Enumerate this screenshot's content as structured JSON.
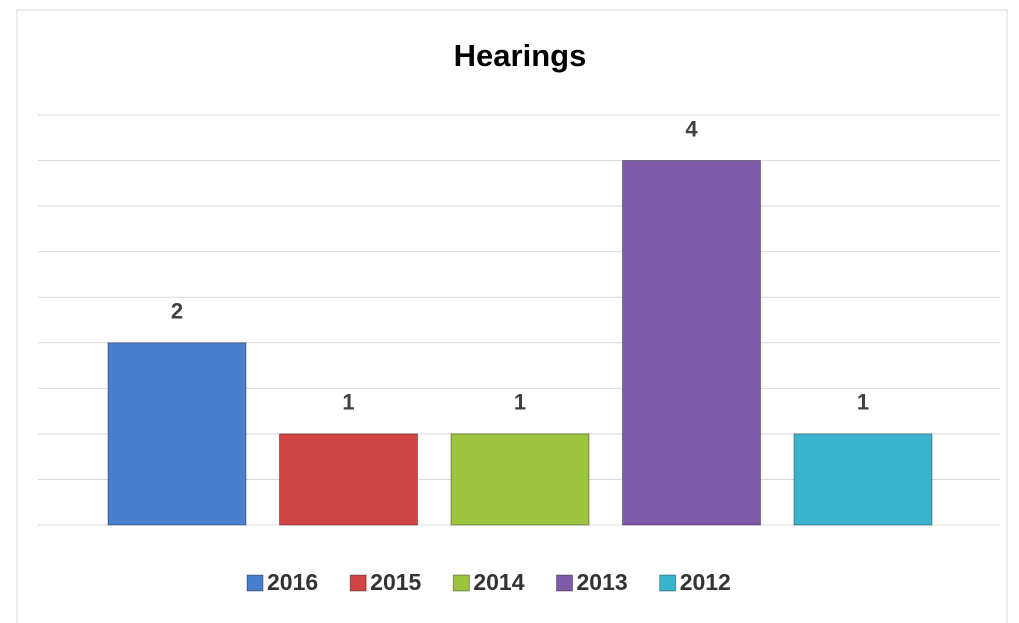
{
  "chart_data": {
    "type": "bar",
    "title": "Hearings",
    "categories": [
      null
    ],
    "series": [
      {
        "name": "2016",
        "color": "#4a7fcf",
        "values": [
          2
        ]
      },
      {
        "name": "2015",
        "color": "#d04444",
        "values": [
          1
        ]
      },
      {
        "name": "2014",
        "color": "#9cc43e",
        "values": [
          1
        ]
      },
      {
        "name": "2013",
        "color": "#7f5aa8",
        "values": [
          4
        ]
      },
      {
        "name": "2012",
        "color": "#3ab4cc",
        "values": [
          1
        ]
      }
    ],
    "ylim": [
      0,
      4.5
    ],
    "yticks": [
      0,
      0.5,
      1,
      1.5,
      2,
      2.5,
      3,
      3.5,
      4,
      4.5
    ],
    "grid": true,
    "legend": "bottom"
  }
}
